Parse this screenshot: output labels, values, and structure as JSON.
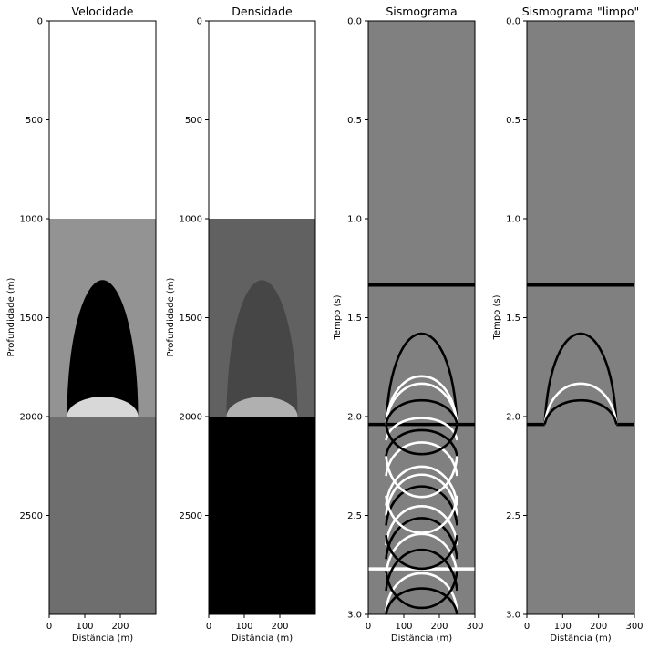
{
  "chart_data": [
    {
      "type": "heatmap",
      "title": "Velocidade",
      "xlabel": "Distância (m)",
      "ylabel": "Profundidade (m)",
      "xlim": [
        0,
        300
      ],
      "ylim": [
        3000,
        0
      ],
      "x_ticks": [
        0,
        100,
        200
      ],
      "y_ticks": [
        0,
        500,
        1000,
        1500,
        2000,
        2500
      ],
      "colormap": "gray",
      "layers": [
        {
          "name": "layer-1",
          "depth_from": 0,
          "depth_to": 1000,
          "shade": "#ffffff"
        },
        {
          "name": "layer-2",
          "depth_from": 1000,
          "depth_to": 2000,
          "shade": "#939393"
        },
        {
          "name": "layer-3",
          "depth_from": 2000,
          "depth_to": 3000,
          "shade": "#6e6e6e"
        }
      ],
      "bodies": [
        {
          "name": "dome",
          "center_x": 150,
          "half_width": 100,
          "top_depth": 1310,
          "base_depth": 2000,
          "shade": "#000000"
        },
        {
          "name": "lens",
          "center_x": 150,
          "half_width": 100,
          "top_depth": 1900,
          "base_depth": 2000,
          "shade": "#d8d8d8"
        }
      ]
    },
    {
      "type": "heatmap",
      "title": "Densidade",
      "xlabel": "Distância (m)",
      "ylabel": "Profundidade (m)",
      "xlim": [
        0,
        300
      ],
      "ylim": [
        3000,
        0
      ],
      "x_ticks": [
        0,
        100,
        200
      ],
      "y_ticks": [
        0,
        500,
        1000,
        1500,
        2000,
        2500
      ],
      "colormap": "gray",
      "layers": [
        {
          "name": "layer-1",
          "depth_from": 0,
          "depth_to": 1000,
          "shade": "#ffffff"
        },
        {
          "name": "layer-2",
          "depth_from": 1000,
          "depth_to": 2000,
          "shade": "#616161"
        },
        {
          "name": "layer-3",
          "depth_from": 2000,
          "depth_to": 3000,
          "shade": "#000000"
        }
      ],
      "bodies": [
        {
          "name": "dome",
          "center_x": 150,
          "half_width": 100,
          "top_depth": 1310,
          "base_depth": 2000,
          "shade": "#464646"
        },
        {
          "name": "lens",
          "center_x": 150,
          "half_width": 100,
          "top_depth": 1900,
          "base_depth": 2000,
          "shade": "#b0b0b0"
        }
      ]
    },
    {
      "type": "heatmap",
      "title": "Sismograma",
      "xlabel": "Distância (m)",
      "ylabel": "Tempo (s)",
      "xlim": [
        0,
        300
      ],
      "ylim": [
        3.0,
        0.0
      ],
      "x_ticks": [
        0,
        100,
        200,
        300
      ],
      "y_ticks": [
        "0.0",
        "0.5",
        "1.0",
        "1.5",
        "2.0",
        "2.5",
        "3.0"
      ],
      "colormap": "gray",
      "background": "#808080",
      "flat_events": [
        {
          "time": 1.335,
          "color": "#000000"
        },
        {
          "time": 2.04,
          "color": "#000000"
        },
        {
          "time": 2.77,
          "color": "#ffffff"
        }
      ],
      "hyperbolas": [
        {
          "apex_time": 1.55,
          "base_time": 2.04,
          "color": "#000000"
        },
        {
          "apex_time": 1.78,
          "base_time": 2.04,
          "color": "#ffffff"
        },
        {
          "apex_time": 1.82,
          "base_time": 2.04,
          "color": "#ffffff"
        },
        {
          "apex_time": 1.91,
          "base_time": 2.04,
          "color": "#000000"
        },
        {
          "apex_time": 2.0,
          "base_time": 2.12,
          "color": "#ffffff"
        },
        {
          "apex_time": 2.06,
          "base_time": 2.2,
          "color": "#000000"
        },
        {
          "apex_time": 2.12,
          "base_time": 2.3,
          "color": "#ffffff"
        },
        {
          "apex_time": 2.24,
          "base_time": 2.45,
          "color": "#ffffff"
        },
        {
          "apex_time": 2.28,
          "base_time": 2.5,
          "color": "#ffffff"
        },
        {
          "apex_time": 2.34,
          "base_time": 2.55,
          "color": "#000000"
        },
        {
          "apex_time": 2.44,
          "base_time": 2.65,
          "color": "#ffffff"
        },
        {
          "apex_time": 2.5,
          "base_time": 2.72,
          "color": "#000000"
        },
        {
          "apex_time": 2.58,
          "base_time": 2.8,
          "color": "#ffffff"
        },
        {
          "apex_time": 2.66,
          "base_time": 2.88,
          "color": "#000000"
        },
        {
          "apex_time": 2.78,
          "base_time": 2.98,
          "color": "#ffffff"
        },
        {
          "apex_time": 2.86,
          "base_time": 3.0,
          "color": "#000000"
        }
      ],
      "inverted_arcs": [
        {
          "apex_time": 2.2,
          "base_time": 2.04,
          "color": "#000000"
        },
        {
          "apex_time": 2.42,
          "base_time": 2.2,
          "color": "#ffffff"
        },
        {
          "apex_time": 2.6,
          "base_time": 2.4,
          "color": "#ffffff"
        },
        {
          "apex_time": 2.78,
          "base_time": 2.6,
          "color": "#000000"
        },
        {
          "apex_time": 2.98,
          "base_time": 2.78,
          "color": "#000000"
        }
      ],
      "source_x": 150,
      "half_width": 100
    },
    {
      "type": "heatmap",
      "title": "Sismograma \"limpo\"",
      "xlabel": "Distância (m)",
      "ylabel": "Tempo (s)",
      "xlim": [
        0,
        300
      ],
      "ylim": [
        3.0,
        0.0
      ],
      "x_ticks": [
        0,
        100,
        200,
        300
      ],
      "y_ticks": [
        "0.0",
        "0.5",
        "1.0",
        "1.5",
        "2.0",
        "2.5",
        "3.0"
      ],
      "colormap": "gray",
      "background": "#808080",
      "flat_events": [
        {
          "time": 1.335,
          "color": "#000000"
        }
      ],
      "edge_events": [
        {
          "time": 2.04,
          "color": "#000000"
        }
      ],
      "hyperbolas": [
        {
          "apex_time": 1.55,
          "base_time": 2.04,
          "color": "#000000"
        },
        {
          "apex_time": 1.82,
          "base_time": 2.04,
          "color": "#ffffff"
        },
        {
          "apex_time": 1.91,
          "base_time": 2.04,
          "color": "#000000"
        }
      ],
      "inverted_arcs": [],
      "source_x": 150,
      "half_width": 100
    }
  ]
}
